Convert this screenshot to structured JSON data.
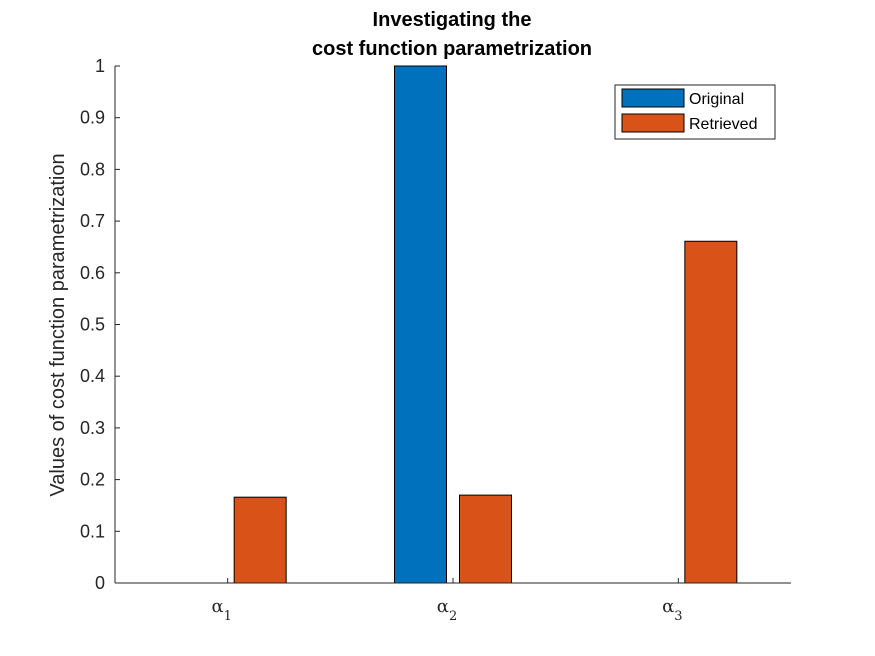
{
  "chart_data": {
    "type": "bar",
    "title_lines": [
      "Investigating the",
      "cost function parametrization"
    ],
    "ylabel": "Values of cost function parametrization",
    "xlabel": "",
    "categories": [
      {
        "symbol": "α",
        "subscript": "1"
      },
      {
        "symbol": "α",
        "subscript": "2"
      },
      {
        "symbol": "α",
        "subscript": "3"
      }
    ],
    "series": [
      {
        "name": "Original",
        "color": "#0072BD",
        "values": [
          0,
          1.0,
          0
        ]
      },
      {
        "name": "Retrieved",
        "color": "#D95319",
        "values": [
          0.166,
          0.17,
          0.661
        ]
      }
    ],
    "ylim": [
      0,
      1
    ],
    "yticks": [
      "0",
      "0.1",
      "0.2",
      "0.3",
      "0.4",
      "0.5",
      "0.6",
      "0.7",
      "0.8",
      "0.9",
      "1"
    ],
    "grid": false,
    "legend_position": "top-right"
  }
}
